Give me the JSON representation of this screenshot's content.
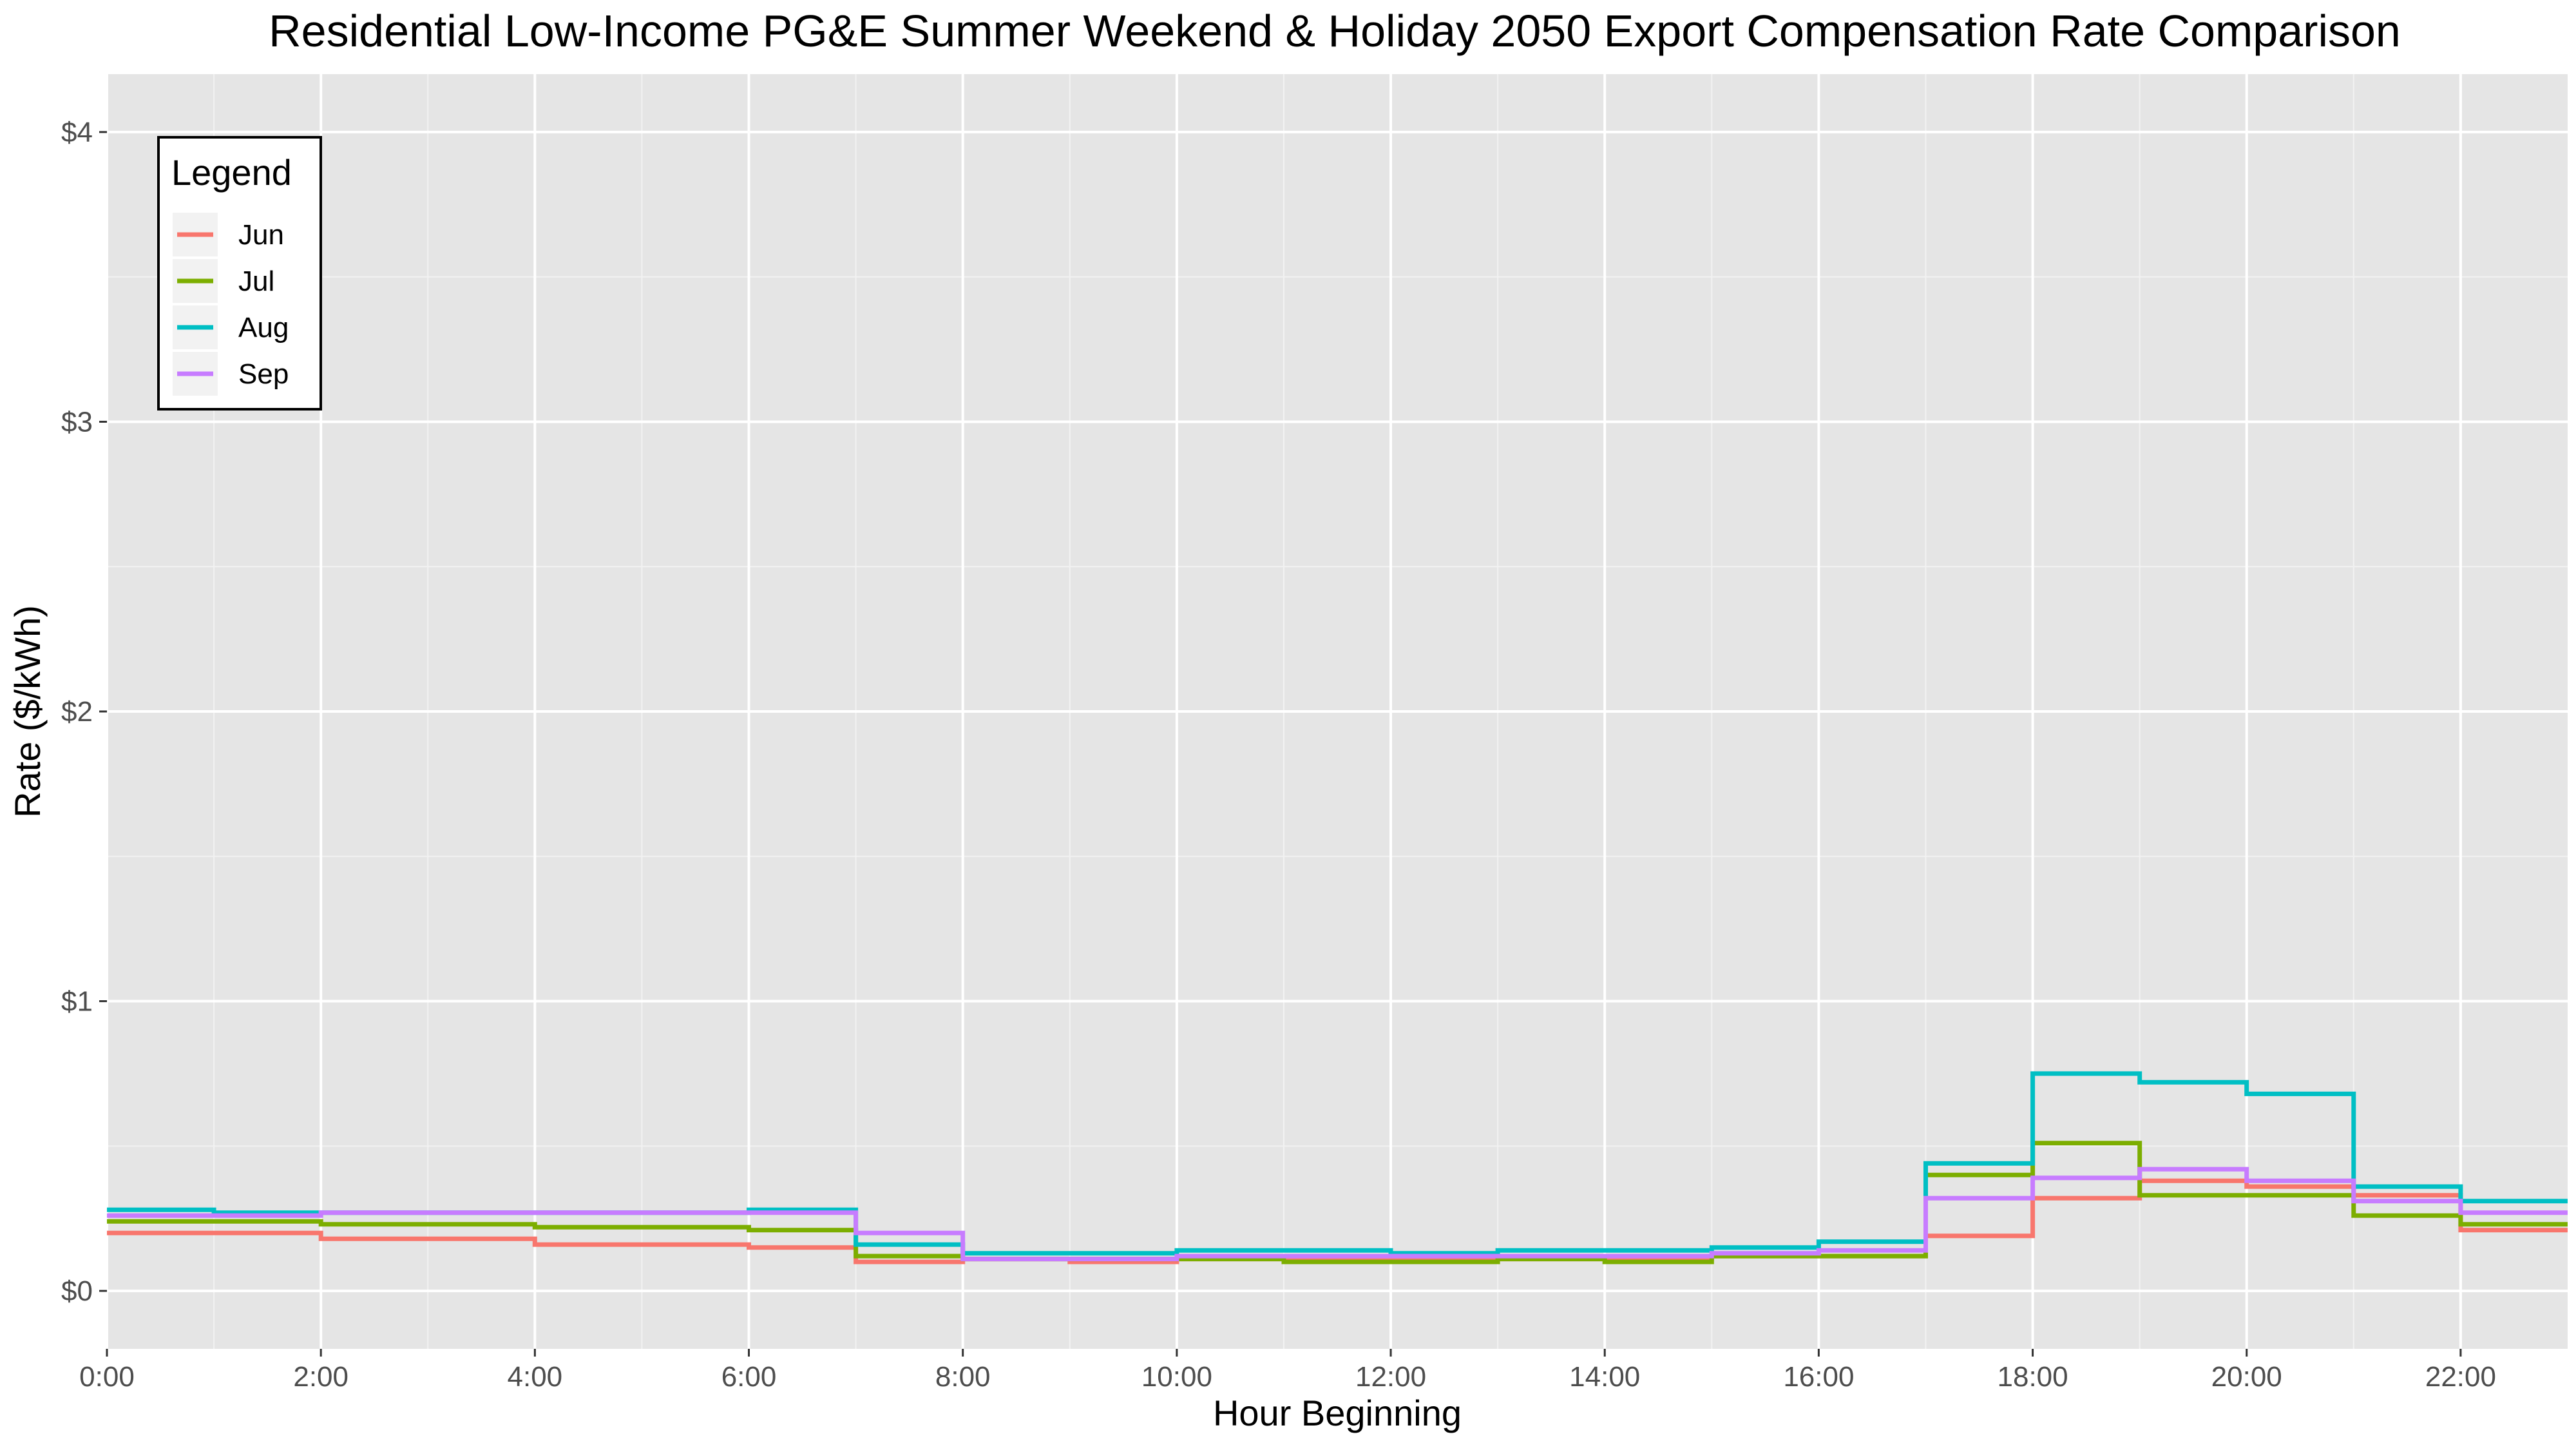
{
  "chart_data": {
    "type": "line",
    "step": true,
    "title": "Residential Low-Income PG&E Summer Weekend & Holiday 2050 Export Compensation Rate Comparison",
    "xlabel": "Hour Beginning",
    "ylabel": "Rate ($/kWh)",
    "x_ticks": [
      "0:00",
      "2:00",
      "4:00",
      "6:00",
      "8:00",
      "10:00",
      "12:00",
      "14:00",
      "16:00",
      "18:00",
      "20:00",
      "22:00"
    ],
    "y_ticks": [
      "$0",
      "$1",
      "$2",
      "$3",
      "$4"
    ],
    "xlim": [
      0,
      23
    ],
    "ylim": [
      -0.2,
      4.2
    ],
    "grid": true,
    "legend": {
      "title": "Legend",
      "placement": "top-left"
    },
    "hours": [
      0,
      1,
      2,
      3,
      4,
      5,
      6,
      7,
      8,
      9,
      10,
      11,
      12,
      13,
      14,
      15,
      16,
      17,
      18,
      19,
      20,
      21,
      22
    ],
    "series": [
      {
        "name": "Jun",
        "color": "#F8766D",
        "values": [
          0.2,
          0.2,
          0.18,
          0.18,
          0.16,
          0.16,
          0.15,
          0.1,
          0.11,
          0.1,
          0.11,
          0.11,
          0.11,
          0.11,
          0.11,
          0.12,
          0.12,
          0.19,
          0.32,
          0.38,
          0.36,
          0.33,
          0.21
        ]
      },
      {
        "name": "Jul",
        "color": "#7CAE00",
        "values": [
          0.24,
          0.24,
          0.23,
          0.23,
          0.22,
          0.22,
          0.21,
          0.12,
          0.11,
          0.11,
          0.11,
          0.1,
          0.1,
          0.11,
          0.1,
          0.12,
          0.12,
          0.4,
          0.51,
          0.33,
          0.33,
          0.26,
          0.23
        ]
      },
      {
        "name": "Aug",
        "color": "#00BFC4",
        "values": [
          0.28,
          0.27,
          0.27,
          0.27,
          0.27,
          0.27,
          0.28,
          0.16,
          0.13,
          0.13,
          0.14,
          0.14,
          0.13,
          0.14,
          0.14,
          0.15,
          0.17,
          0.44,
          0.75,
          0.72,
          0.68,
          0.36,
          0.31
        ]
      },
      {
        "name": "Sep",
        "color": "#C77CFF",
        "values": [
          0.26,
          0.26,
          0.27,
          0.27,
          0.27,
          0.27,
          0.27,
          0.2,
          0.11,
          0.11,
          0.12,
          0.12,
          0.12,
          0.12,
          0.12,
          0.13,
          0.14,
          0.32,
          0.39,
          0.42,
          0.38,
          0.31,
          0.27
        ]
      }
    ]
  },
  "theme": {
    "panel_background": "#E5E5E5",
    "grid_major": "#FFFFFF",
    "tick_color": "#4d4d4d"
  }
}
